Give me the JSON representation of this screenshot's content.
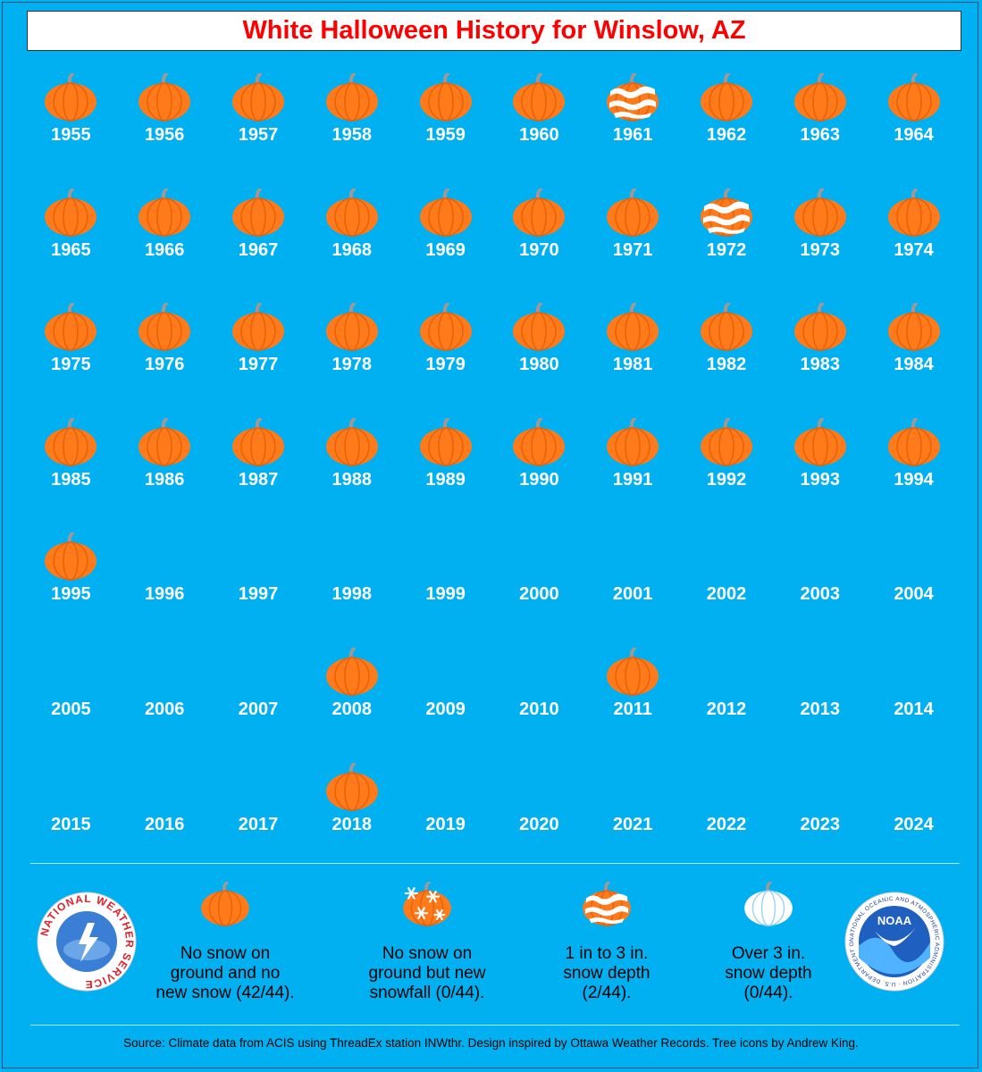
{
  "title": "White Halloween History for Winslow, AZ",
  "colors": {
    "background": "#00b0f0",
    "title": "#ff0000",
    "pumpkin": "#ff7a1a",
    "pumpkin_dark": "#e8620a",
    "stem": "#9a9a9a",
    "snow": "#ffffff"
  },
  "years": [
    {
      "year": "1955",
      "status": "none"
    },
    {
      "year": "1956",
      "status": "none"
    },
    {
      "year": "1957",
      "status": "none"
    },
    {
      "year": "1958",
      "status": "none"
    },
    {
      "year": "1959",
      "status": "none"
    },
    {
      "year": "1960",
      "status": "none"
    },
    {
      "year": "1961",
      "status": "depth"
    },
    {
      "year": "1962",
      "status": "none"
    },
    {
      "year": "1963",
      "status": "none"
    },
    {
      "year": "1964",
      "status": "none"
    },
    {
      "year": "1965",
      "status": "none"
    },
    {
      "year": "1966",
      "status": "none"
    },
    {
      "year": "1967",
      "status": "none"
    },
    {
      "year": "1968",
      "status": "none"
    },
    {
      "year": "1969",
      "status": "none"
    },
    {
      "year": "1970",
      "status": "none"
    },
    {
      "year": "1971",
      "status": "none"
    },
    {
      "year": "1972",
      "status": "depth"
    },
    {
      "year": "1973",
      "status": "none"
    },
    {
      "year": "1974",
      "status": "none"
    },
    {
      "year": "1975",
      "status": "none"
    },
    {
      "year": "1976",
      "status": "none"
    },
    {
      "year": "1977",
      "status": "none"
    },
    {
      "year": "1978",
      "status": "none"
    },
    {
      "year": "1979",
      "status": "none"
    },
    {
      "year": "1980",
      "status": "none"
    },
    {
      "year": "1981",
      "status": "none"
    },
    {
      "year": "1982",
      "status": "none"
    },
    {
      "year": "1983",
      "status": "none"
    },
    {
      "year": "1984",
      "status": "none"
    },
    {
      "year": "1985",
      "status": "none"
    },
    {
      "year": "1986",
      "status": "none"
    },
    {
      "year": "1987",
      "status": "none"
    },
    {
      "year": "1988",
      "status": "none"
    },
    {
      "year": "1989",
      "status": "none"
    },
    {
      "year": "1990",
      "status": "none"
    },
    {
      "year": "1991",
      "status": "none"
    },
    {
      "year": "1992",
      "status": "none"
    },
    {
      "year": "1993",
      "status": "none"
    },
    {
      "year": "1994",
      "status": "none"
    },
    {
      "year": "1995",
      "status": "none"
    },
    {
      "year": "1996",
      "status": "missing"
    },
    {
      "year": "1997",
      "status": "missing"
    },
    {
      "year": "1998",
      "status": "missing"
    },
    {
      "year": "1999",
      "status": "missing"
    },
    {
      "year": "2000",
      "status": "missing"
    },
    {
      "year": "2001",
      "status": "missing"
    },
    {
      "year": "2002",
      "status": "missing"
    },
    {
      "year": "2003",
      "status": "missing"
    },
    {
      "year": "2004",
      "status": "missing"
    },
    {
      "year": "2005",
      "status": "missing"
    },
    {
      "year": "2006",
      "status": "missing"
    },
    {
      "year": "2007",
      "status": "missing"
    },
    {
      "year": "2008",
      "status": "none"
    },
    {
      "year": "2009",
      "status": "missing"
    },
    {
      "year": "2010",
      "status": "missing"
    },
    {
      "year": "2011",
      "status": "none"
    },
    {
      "year": "2012",
      "status": "missing"
    },
    {
      "year": "2013",
      "status": "missing"
    },
    {
      "year": "2014",
      "status": "missing"
    },
    {
      "year": "2015",
      "status": "missing"
    },
    {
      "year": "2016",
      "status": "missing"
    },
    {
      "year": "2017",
      "status": "missing"
    },
    {
      "year": "2018",
      "status": "none"
    },
    {
      "year": "2019",
      "status": "missing"
    },
    {
      "year": "2020",
      "status": "missing"
    },
    {
      "year": "2021",
      "status": "missing"
    },
    {
      "year": "2022",
      "status": "missing"
    },
    {
      "year": "2023",
      "status": "missing"
    },
    {
      "year": "2024",
      "status": "missing"
    }
  ],
  "legend": [
    {
      "icon": "pumpkin-icon",
      "status": "none",
      "text": "No snow on\nground and no\nnew snow (42/44)."
    },
    {
      "icon": "pumpkin-snowflake-icon",
      "status": "newsnow",
      "text": "No snow on\nground but new\nsnowfall (0/44)."
    },
    {
      "icon": "pumpkin-snow-depth-icon",
      "status": "depth",
      "text": "1 in to 3 in.\nsnow depth\n(2/44)."
    },
    {
      "icon": "white-pumpkin-icon",
      "status": "white",
      "text": "Over 3 in.\nsnow depth\n(0/44)."
    }
  ],
  "logos": {
    "nws": {
      "text": "NATIONAL WEATHER SERVICE"
    },
    "noaa": {
      "center": "NOAA",
      "ring": "NATIONAL OCEANIC AND ATMOSPHERIC ADMINISTRATION · U.S. DEPARTMENT OF COMMERCE"
    }
  },
  "source": "Source: Climate data from ACIS using ThreadEx station INWthr. Design inspired by Ottawa Weather Records. Tree icons by Andrew King."
}
